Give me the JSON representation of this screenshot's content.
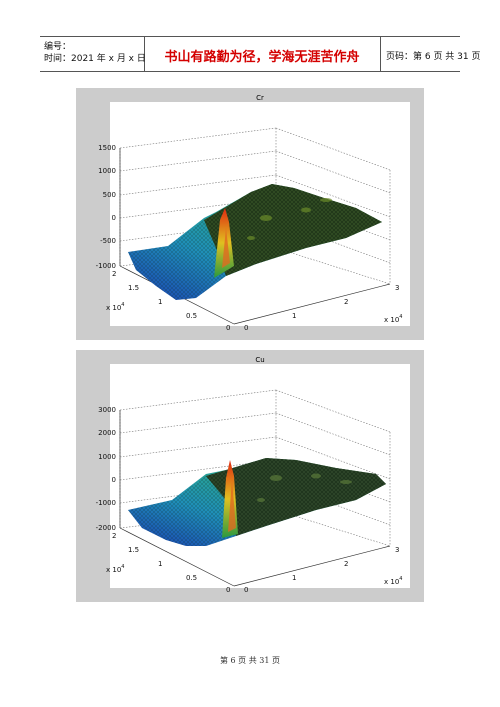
{
  "header": {
    "code_label": "编号：",
    "time_label": "时间：2021 年 x 月 x 日",
    "motto": "书山有路勤为径，学海无涯苦作舟",
    "page_info": "页码：第 6 页  共 31 页"
  },
  "figures": [
    {
      "title": "Cr",
      "z_ticks": [
        "1500",
        "1000",
        "500",
        "0",
        "-500",
        "-1000"
      ],
      "y_ticks": [
        "2",
        "1.5",
        "1",
        "0.5",
        "0"
      ],
      "x_ticks": [
        "0",
        "1",
        "2",
        "3"
      ],
      "y_multiplier": "x 10",
      "x_multiplier": "x 10",
      "exponent": "4"
    },
    {
      "title": "Cu",
      "z_ticks": [
        "3000",
        "2000",
        "1000",
        "0",
        "-1000",
        "-2000"
      ],
      "y_ticks": [
        "2",
        "1.5",
        "1",
        "0.5",
        "0"
      ],
      "x_ticks": [
        "0",
        "1",
        "2",
        "3"
      ],
      "y_multiplier": "x 10",
      "x_multiplier": "x 10",
      "exponent": "4"
    }
  ],
  "footer": "第 6 页 共 31 页"
}
